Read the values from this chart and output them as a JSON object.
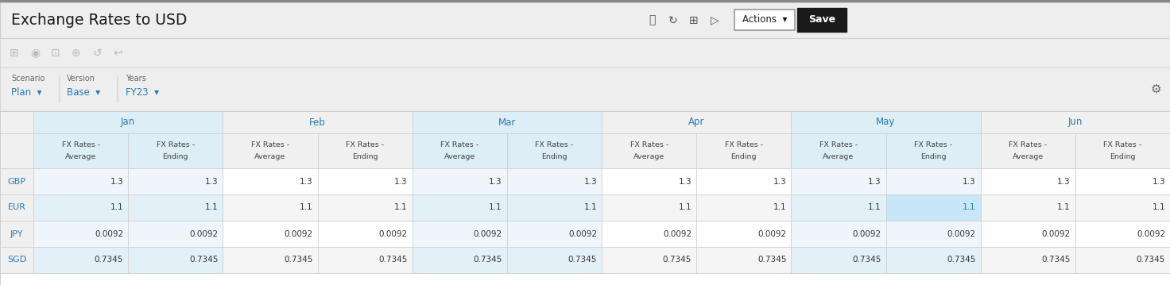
{
  "title": "Exchange Rates to USD",
  "scenario_label": "Scenario",
  "scenario_value": "Plan",
  "version_label": "Version",
  "version_value": "Base",
  "years_label": "Years",
  "years_value": "FY23",
  "months": [
    "Jan",
    "Feb",
    "Mar",
    "Apr",
    "May",
    "Jun"
  ],
  "col_headers_line1": [
    "FX Rates -",
    "FX Rates -",
    "FX Rates -",
    "FX Rates -",
    "FX Rates -",
    "FX Rates -",
    "FX Rates -",
    "FX Rates -",
    "FX Rates -",
    "FX Rates -",
    "FX Rates -",
    "FX Rates -"
  ],
  "col_headers_line2": [
    "Average",
    "Ending",
    "Average",
    "Ending",
    "Average",
    "Ending",
    "Average",
    "Ending",
    "Average",
    "Ending",
    "Average",
    "Ending"
  ],
  "row_labels": [
    "GBP",
    "EUR",
    "JPY",
    "SGD"
  ],
  "data_display": [
    [
      "1.3",
      "1.3",
      "1.3",
      "1.3",
      "1.3",
      "1.3",
      "1.3",
      "1.3",
      "1.3",
      "1.3",
      "1.3",
      "1.3"
    ],
    [
      "1.1",
      "1.1",
      "1.1",
      "1.1",
      "1.1",
      "1.1",
      "1.1",
      "1.1",
      "1.1",
      "1.1",
      "1.1",
      "1.1"
    ],
    [
      "0.0092",
      "0.0092",
      "0.0092",
      "0.0092",
      "0.0092",
      "0.0092",
      "0.0092",
      "0.0092",
      "0.0092",
      "0.0092",
      "0.0092",
      "0.0092"
    ],
    [
      "0.7345",
      "0.7345",
      "0.7345",
      "0.7345",
      "0.7345",
      "0.7345",
      "0.7345",
      "0.7345",
      "0.7345",
      "0.7345",
      "0.7345",
      "0.7345"
    ]
  ],
  "bg_color": "#eeeeee",
  "white": "#ffffff",
  "title_color": "#1a1a1a",
  "month_text_color": "#2a7ab5",
  "subheader_text_color": "#444444",
  "row_label_color": "#2a7ab5",
  "data_color": "#333333",
  "highlight_bg": "#c8e6f5",
  "highlight_text": "#2a7ab5",
  "border_color": "#cccccc",
  "border_dark": "#aaaaaa",
  "actions_btn_bg": "#ffffff",
  "actions_btn_border": "#999999",
  "save_btn_bg": "#1a1a1a",
  "save_btn_text": "#ffffff",
  "month_header_bg_even": "#ddeef7",
  "month_header_bg_odd": "#f0f0f0",
  "subheader_bg_even": "#ddeef7",
  "subheader_bg_odd": "#f0f0f0",
  "row_bg_even": "#ffffff",
  "row_bg_odd": "#f5f5f5",
  "row_label_bg": "#f0f0f0",
  "eur_highlight_col": 9,
  "top_border_color": "#888888",
  "fig_width": 14.72,
  "fig_height": 3.59,
  "dpi": 100
}
